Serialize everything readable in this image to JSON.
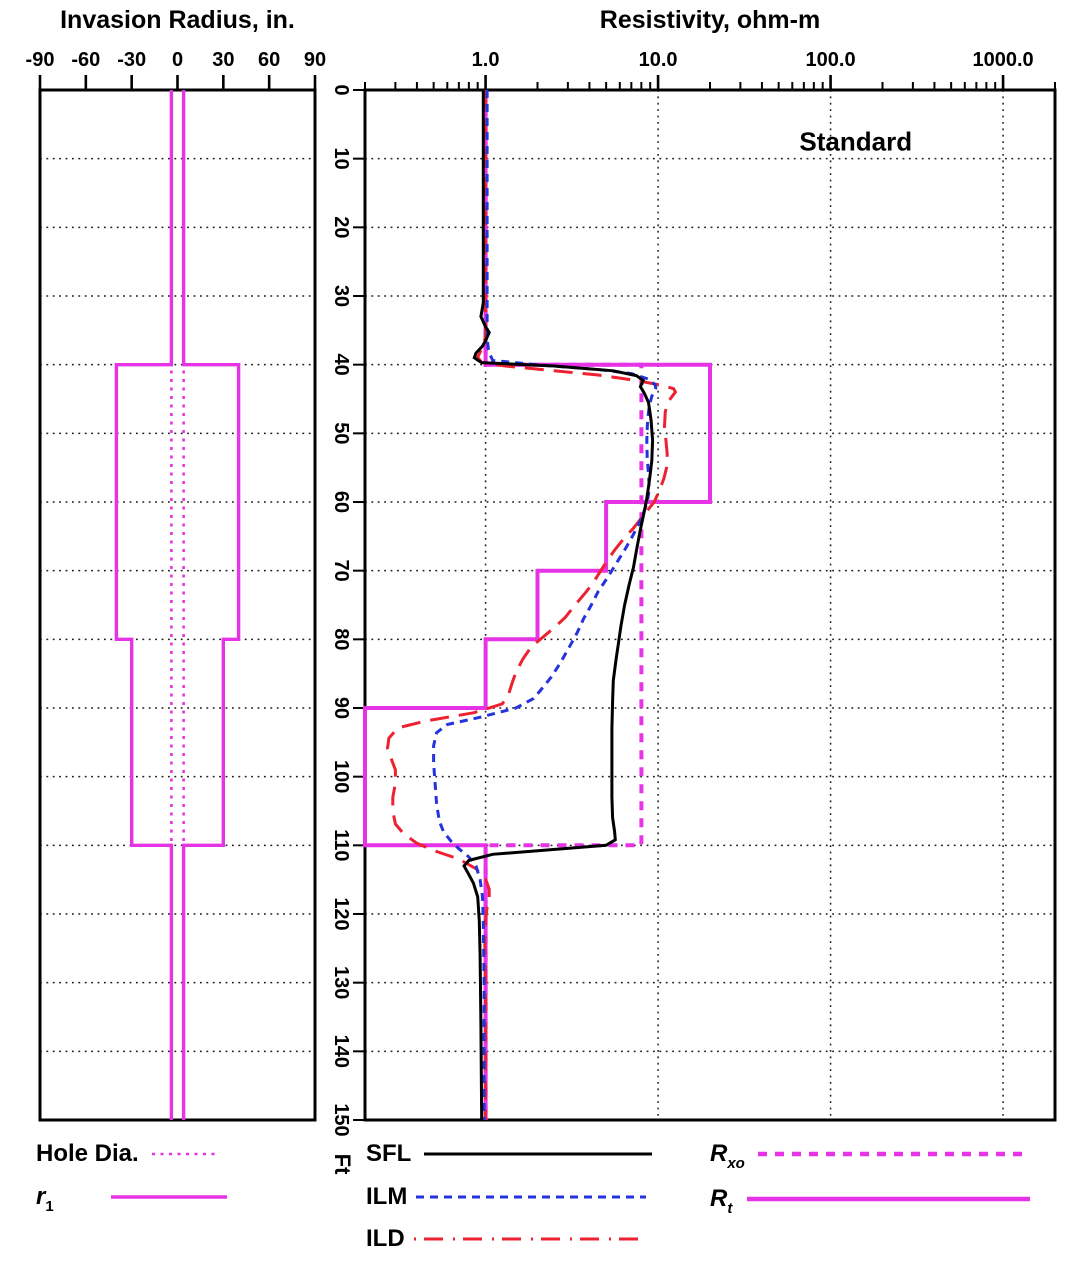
{
  "titles": {
    "left": "Invasion Radius, in.",
    "right": "Resistivity, ohm-m"
  },
  "colors": {
    "magenta": "#e633e6",
    "blue": "#2433dd",
    "red": "#ee2130",
    "black": "#000000",
    "grid": "#1a1a1a"
  },
  "legend": {
    "left": [
      {
        "main": "Hole Dia.",
        "sub": "",
        "color": "#e633e6",
        "width": 2.6,
        "dash": "3 5.5"
      },
      {
        "main": "r",
        "sub": "1",
        "color": "#e633e6",
        "width": 3.4,
        "dash": ""
      }
    ],
    "mid": [
      {
        "main": "SFL",
        "sub": "",
        "color": "#000000",
        "width": 3,
        "dash": ""
      },
      {
        "main": "ILM",
        "sub": "",
        "color": "#2433dd",
        "width": 3,
        "dash": "8 6"
      },
      {
        "main": "ILD",
        "sub": "",
        "color": "#ee2130",
        "width": 3,
        "dash": "2 8 19 10"
      }
    ],
    "right": [
      {
        "main": "R",
        "sub": "xo",
        "color": "#e633e6",
        "width": 4.5,
        "dash": "9 8"
      },
      {
        "main": "R",
        "sub": "t",
        "color": "#e633e6",
        "width": 4.5,
        "dash": ""
      }
    ]
  },
  "chart_data": [
    {
      "id": "invasion",
      "type": "line",
      "title": "Invasion Radius, in.",
      "xlabel": "Invasion Radius, in.",
      "ylabel": "Ft",
      "xscale": "linear",
      "xlim": [
        -90,
        90
      ],
      "ylim": [
        0,
        150
      ],
      "grid_y_step": 10,
      "xticks": [
        {
          "v": -90,
          "label": "-90"
        },
        {
          "v": -60,
          "label": "-60"
        },
        {
          "v": -30,
          "label": "-30"
        },
        {
          "v": 0,
          "label": "0"
        },
        {
          "v": 30,
          "label": "30"
        },
        {
          "v": 60,
          "label": "60"
        },
        {
          "v": 90,
          "label": "90"
        }
      ],
      "legend_entries": [
        "Hole Dia.",
        "r1"
      ],
      "series": [
        {
          "name": "Hole Dia.",
          "color": "#e633e6",
          "width": 2.6,
          "dash": "3 5.5",
          "mirror": true,
          "points": [
            [
              4,
              0
            ],
            [
              4,
              150
            ]
          ]
        },
        {
          "name": "r1",
          "color": "#e633e6",
          "width": 3.4,
          "dash": "",
          "mirror": true,
          "points": [
            [
              4,
              0
            ],
            [
              4,
              40
            ],
            [
              40,
              40
            ],
            [
              40,
              80
            ],
            [
              30,
              80
            ],
            [
              30,
              110
            ],
            [
              4,
              110
            ],
            [
              4,
              150
            ]
          ]
        }
      ]
    },
    {
      "id": "resistivity",
      "type": "line",
      "title": "Resistivity, ohm-m",
      "xlabel": "Resistivity, ohm-m",
      "ylabel": "Ft",
      "xscale": "log",
      "xlim": [
        0.2,
        2000
      ],
      "ylim": [
        0,
        150
      ],
      "grid_y_step": 10,
      "grid_x_values": [
        1,
        10,
        100,
        1000
      ],
      "xticks": [
        {
          "v": 1,
          "label": "1.0"
        },
        {
          "v": 10,
          "label": "10.0"
        },
        {
          "v": 100,
          "label": "100.0"
        },
        {
          "v": 1000,
          "label": "1000.0"
        }
      ],
      "minor_ticks": [
        0.2,
        0.3,
        0.4,
        0.5,
        0.6,
        0.7,
        0.8,
        0.9,
        2,
        3,
        4,
        5,
        6,
        7,
        8,
        9,
        20,
        30,
        40,
        50,
        60,
        70,
        80,
        90,
        200,
        300,
        400,
        500,
        600,
        700,
        800,
        900,
        2000
      ],
      "depth_axis": {
        "unit": "Ft",
        "ticks": [
          0,
          10,
          20,
          30,
          40,
          50,
          60,
          70,
          80,
          90,
          100,
          110,
          120,
          130,
          140,
          150
        ]
      },
      "annotation": {
        "text": "Standard",
        "color": "#e8232f",
        "value": 140,
        "depth": 7.5
      },
      "legend_entries": [
        "SFL",
        "ILM",
        "ILD",
        "Rxo",
        "Rt"
      ],
      "series": [
        {
          "name": "Rxo",
          "color": "#e633e6",
          "width": 4,
          "dash": "9 8",
          "points": [
            [
              1,
              0
            ],
            [
              1,
              40
            ],
            [
              8,
              40
            ],
            [
              8,
              110
            ],
            [
              1,
              110
            ],
            [
              1,
              150
            ]
          ]
        },
        {
          "name": "Rt",
          "color": "#e633e6",
          "width": 4,
          "dash": "",
          "points": [
            [
              1,
              0
            ],
            [
              1,
              40
            ],
            [
              20,
              40
            ],
            [
              20,
              60
            ],
            [
              5,
              60
            ],
            [
              5,
              70
            ],
            [
              2,
              70
            ],
            [
              2,
              80
            ],
            [
              1,
              80
            ],
            [
              1,
              90
            ],
            [
              0.2,
              90
            ],
            [
              0.2,
              110
            ],
            [
              1,
              110
            ],
            [
              1,
              150
            ]
          ]
        },
        {
          "name": "ILD",
          "color": "#ee2130",
          "width": 3,
          "dash": "19 10",
          "points": [
            [
              1.0,
              0
            ],
            [
              1.0,
              35.5
            ],
            [
              0.98,
              37
            ],
            [
              0.93,
              38.2
            ],
            [
              0.9,
              38.9
            ],
            [
              0.95,
              39.7
            ],
            [
              1.3,
              40.2
            ],
            [
              2.5,
              40.9
            ],
            [
              4.5,
              41.5
            ],
            [
              7.5,
              42.3
            ],
            [
              10.5,
              43
            ],
            [
              12.3,
              43.5
            ],
            [
              12.6,
              44
            ],
            [
              12.0,
              44.7
            ],
            [
              11.3,
              45.6
            ],
            [
              11.0,
              47
            ],
            [
              10.9,
              49
            ],
            [
              11.1,
              51
            ],
            [
              11.3,
              53
            ],
            [
              11.2,
              55
            ],
            [
              10.8,
              56.6
            ],
            [
              10.3,
              58
            ],
            [
              9.5,
              60
            ],
            [
              8.2,
              62
            ],
            [
              7.2,
              63.8
            ],
            [
              6.4,
              65.2
            ],
            [
              5.6,
              67
            ],
            [
              5.0,
              68.8
            ],
            [
              4.6,
              70.2
            ],
            [
              4.2,
              71.8
            ],
            [
              3.8,
              73.2
            ],
            [
              3.3,
              75
            ],
            [
              2.9,
              76.8
            ],
            [
              2.5,
              78.3
            ],
            [
              2.1,
              79.9
            ],
            [
              1.85,
              81
            ],
            [
              1.65,
              82.8
            ],
            [
              1.5,
              84.8
            ],
            [
              1.42,
              86.5
            ],
            [
              1.36,
              88
            ],
            [
              1.25,
              89.4
            ],
            [
              0.85,
              90.7
            ],
            [
              0.45,
              91.9
            ],
            [
              0.31,
              92.9
            ],
            [
              0.275,
              94.4
            ],
            [
              0.27,
              95.9
            ],
            [
              0.285,
              97.5
            ],
            [
              0.3,
              99
            ],
            [
              0.3,
              101
            ],
            [
              0.29,
              103
            ],
            [
              0.29,
              105
            ],
            [
              0.3,
              106.9
            ],
            [
              0.335,
              108.3
            ],
            [
              0.4,
              109.7
            ],
            [
              0.52,
              110.9
            ],
            [
              0.7,
              112
            ],
            [
              0.88,
              113.4
            ],
            [
              1.0,
              114.9
            ],
            [
              1.05,
              116.4
            ],
            [
              1.05,
              117.6
            ],
            [
              1.02,
              119
            ],
            [
              1.0,
              121
            ],
            [
              0.99,
              124.5
            ],
            [
              1.0,
              130
            ],
            [
              1.0,
              150
            ]
          ]
        },
        {
          "name": "ILM",
          "color": "#2433dd",
          "width": 3,
          "dash": "8 6",
          "points": [
            [
              1.02,
              0
            ],
            [
              1.02,
              36
            ],
            [
              1.04,
              38
            ],
            [
              1.1,
              39.4
            ],
            [
              2.2,
              40.1
            ],
            [
              4.5,
              40.7
            ],
            [
              7.0,
              41.3
            ],
            [
              8.8,
              42.1
            ],
            [
              9.6,
              42.9
            ],
            [
              9.7,
              43.4
            ],
            [
              9.2,
              44.6
            ],
            [
              8.9,
              46
            ],
            [
              8.7,
              48
            ],
            [
              8.6,
              51
            ],
            [
              8.65,
              53.5
            ],
            [
              8.8,
              56
            ],
            [
              8.9,
              58
            ],
            [
              8.7,
              59.8
            ],
            [
              8.4,
              61
            ],
            [
              7.8,
              63
            ],
            [
              7.1,
              65
            ],
            [
              6.4,
              67
            ],
            [
              5.7,
              69
            ],
            [
              5.1,
              71
            ],
            [
              4.5,
              73
            ],
            [
              4.1,
              75
            ],
            [
              3.7,
              77
            ],
            [
              3.4,
              79
            ],
            [
              3.0,
              81.5
            ],
            [
              2.7,
              83.5
            ],
            [
              2.4,
              85.5
            ],
            [
              2.1,
              87.3
            ],
            [
              1.9,
              88.6
            ],
            [
              1.5,
              90
            ],
            [
              0.95,
              91.3
            ],
            [
              0.6,
              92.4
            ],
            [
              0.52,
              93.6
            ],
            [
              0.5,
              95.5
            ],
            [
              0.5,
              98
            ],
            [
              0.51,
              101
            ],
            [
              0.52,
              104
            ],
            [
              0.54,
              106.5
            ],
            [
              0.57,
              108
            ],
            [
              0.63,
              109.4
            ],
            [
              0.7,
              110.5
            ],
            [
              0.8,
              111.7
            ],
            [
              0.88,
              113
            ],
            [
              0.93,
              115
            ],
            [
              0.96,
              117.5
            ],
            [
              0.97,
              121
            ],
            [
              0.98,
              130
            ],
            [
              0.98,
              150
            ]
          ]
        },
        {
          "name": "SFL",
          "color": "#000000",
          "width": 3,
          "dash": "",
          "points": [
            [
              0.97,
              0
            ],
            [
              0.97,
              31
            ],
            [
              0.94,
              33
            ],
            [
              1.0,
              34.5
            ],
            [
              1.05,
              35.3
            ],
            [
              1.0,
              36.5
            ],
            [
              0.96,
              37.3
            ],
            [
              0.88,
              38.3
            ],
            [
              0.86,
              39.0
            ],
            [
              0.95,
              39.7
            ],
            [
              2.5,
              40.2
            ],
            [
              5.5,
              40.9
            ],
            [
              7.5,
              41.6
            ],
            [
              8.2,
              42.3
            ],
            [
              7.9,
              43.2
            ],
            [
              8.3,
              44.1
            ],
            [
              8.8,
              45.5
            ],
            [
              9.1,
              48
            ],
            [
              9.3,
              51
            ],
            [
              9.2,
              54
            ],
            [
              8.9,
              57
            ],
            [
              8.6,
              59.5
            ],
            [
              8.3,
              61.5
            ],
            [
              7.9,
              64
            ],
            [
              7.5,
              67
            ],
            [
              7.2,
              69.5
            ],
            [
              6.8,
              72
            ],
            [
              6.4,
              75
            ],
            [
              6.1,
              78
            ],
            [
              5.9,
              80.5
            ],
            [
              5.7,
              83
            ],
            [
              5.5,
              86
            ],
            [
              5.45,
              89
            ],
            [
              5.4,
              93
            ],
            [
              5.4,
              103
            ],
            [
              5.45,
              106
            ],
            [
              5.6,
              108
            ],
            [
              5.65,
              109.2
            ],
            [
              5.0,
              110
            ],
            [
              2.8,
              110.5
            ],
            [
              1.1,
              111.3
            ],
            [
              0.8,
              112.2
            ],
            [
              0.75,
              113
            ],
            [
              0.79,
              114
            ],
            [
              0.85,
              115.5
            ],
            [
              0.9,
              117.5
            ],
            [
              0.92,
              121
            ],
            [
              0.93,
              126
            ],
            [
              0.94,
              136
            ],
            [
              0.95,
              150
            ]
          ]
        }
      ]
    }
  ]
}
